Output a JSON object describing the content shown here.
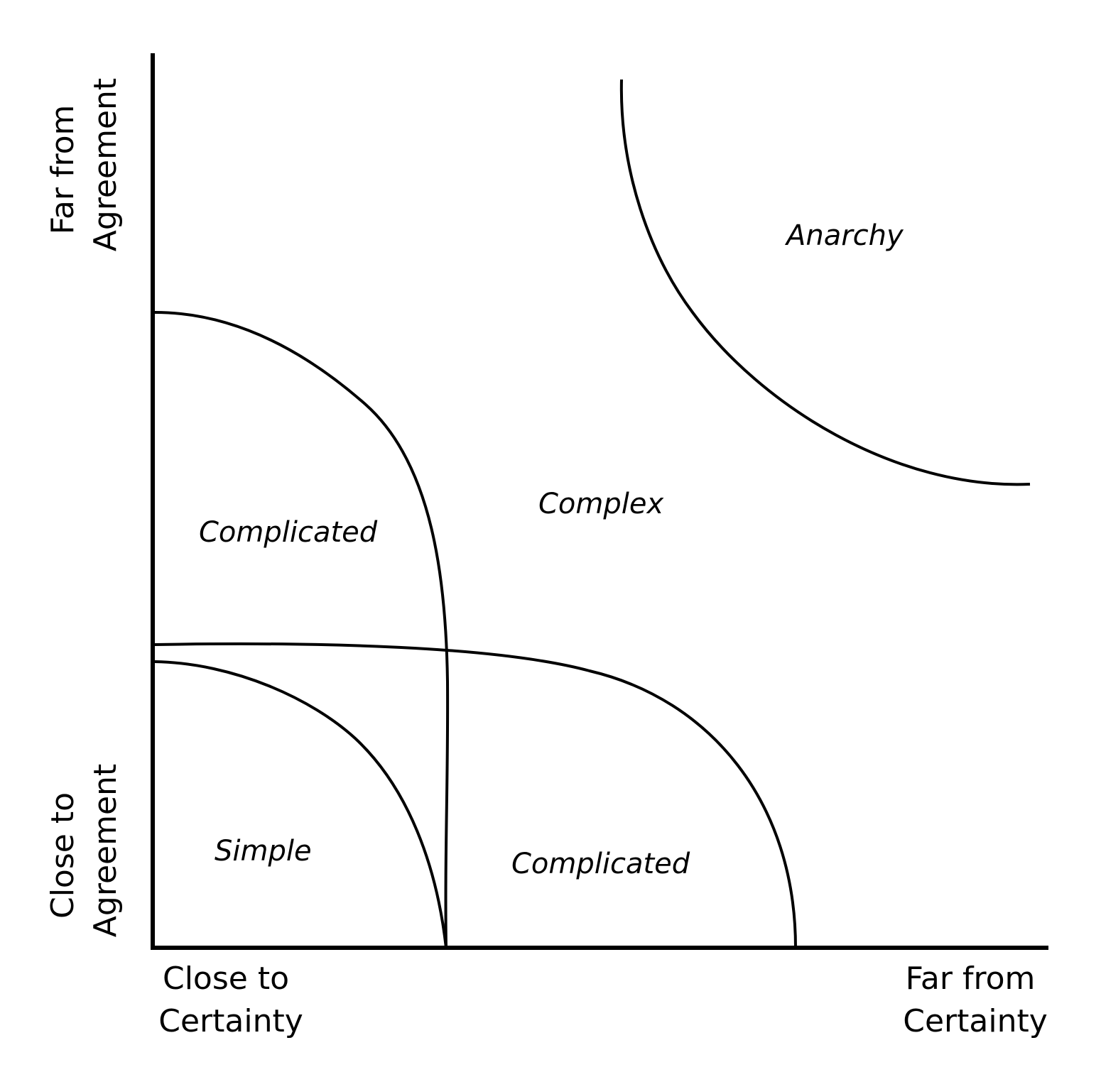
{
  "axes": {
    "x_low": [
      "Close to",
      "Certainty"
    ],
    "x_high": [
      "Far from",
      "Certainty"
    ],
    "y_low": [
      "Close to",
      "Agreement"
    ],
    "y_high": [
      "Far from",
      "Agreement"
    ]
  },
  "regions": {
    "simple": "Simple",
    "complicated_top": "Complicated",
    "complicated_bottom": "Complicated",
    "complex": "Complex",
    "anarchy": "Anarchy"
  },
  "colors": {
    "ink": "#000000",
    "background": "#ffffff"
  }
}
